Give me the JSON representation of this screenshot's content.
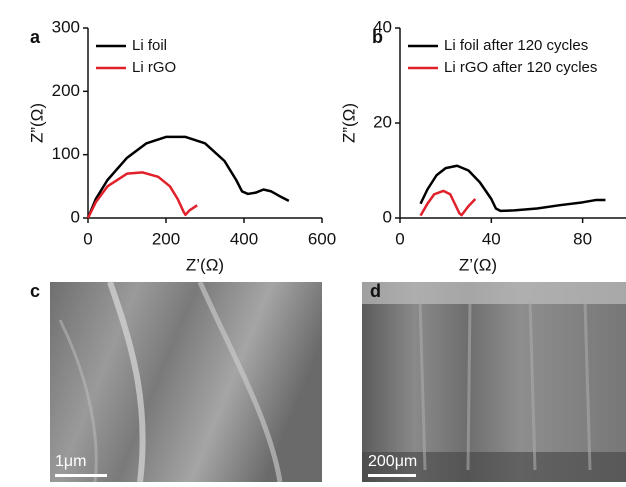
{
  "chart_data": [
    {
      "type": "line",
      "panel_label": "a",
      "x_label": "Z’(Ω)",
      "y_label": "Z”(Ω)",
      "xlim": [
        0,
        600
      ],
      "xticks": [
        0,
        200,
        400,
        600
      ],
      "ylim": [
        0,
        300
      ],
      "yticks": [
        0,
        100,
        200,
        300
      ],
      "grid": false,
      "legend": "upper left",
      "series": [
        {
          "name": "Li foil",
          "color": "#000000",
          "x": [
            0,
            20,
            50,
            100,
            150,
            200,
            250,
            300,
            350,
            380,
            395,
            410,
            430,
            450,
            470,
            490,
            515
          ],
          "values": [
            0,
            30,
            60,
            95,
            118,
            128,
            128,
            118,
            90,
            60,
            42,
            38,
            40,
            45,
            42,
            35,
            27
          ]
        },
        {
          "name": "Li rGO",
          "color": "#e0202a",
          "x": [
            0,
            20,
            50,
            100,
            140,
            180,
            210,
            230,
            245,
            250,
            260,
            280
          ],
          "values": [
            0,
            25,
            50,
            70,
            72,
            65,
            50,
            30,
            10,
            5,
            12,
            20
          ]
        }
      ]
    },
    {
      "type": "line",
      "panel_label": "b",
      "x_label": "Z’(Ω)",
      "y_label": "Z”(Ω)",
      "xlim": [
        0,
        99
      ],
      "xticks": [
        0,
        40,
        80
      ],
      "ylim": [
        0,
        40
      ],
      "yticks": [
        0,
        20,
        40
      ],
      "grid": false,
      "legend": "upper left",
      "series": [
        {
          "name": "Li foil after 120 cycles",
          "color": "#000000",
          "x": [
            9,
            12,
            16,
            20,
            25,
            30,
            35,
            40,
            42,
            44,
            50,
            60,
            70,
            80,
            86,
            90
          ],
          "values": [
            3,
            6,
            9,
            10.5,
            11,
            10,
            7.5,
            4,
            2,
            1.5,
            1.6,
            2,
            2.7,
            3.3,
            3.8,
            3.8
          ]
        },
        {
          "name": "Li rGO after 120 cycles",
          "color": "#e0202a",
          "x": [
            9,
            12,
            15,
            19,
            22,
            24,
            26,
            27,
            30,
            33
          ],
          "values": [
            0.5,
            3,
            5,
            5.7,
            5,
            3,
            1,
            0.6,
            2.5,
            4
          ]
        }
      ]
    }
  ],
  "images": [
    {
      "panel_label": "c",
      "scale_bar": "1μm"
    },
    {
      "panel_label": "d",
      "scale_bar": "200μm"
    }
  ]
}
